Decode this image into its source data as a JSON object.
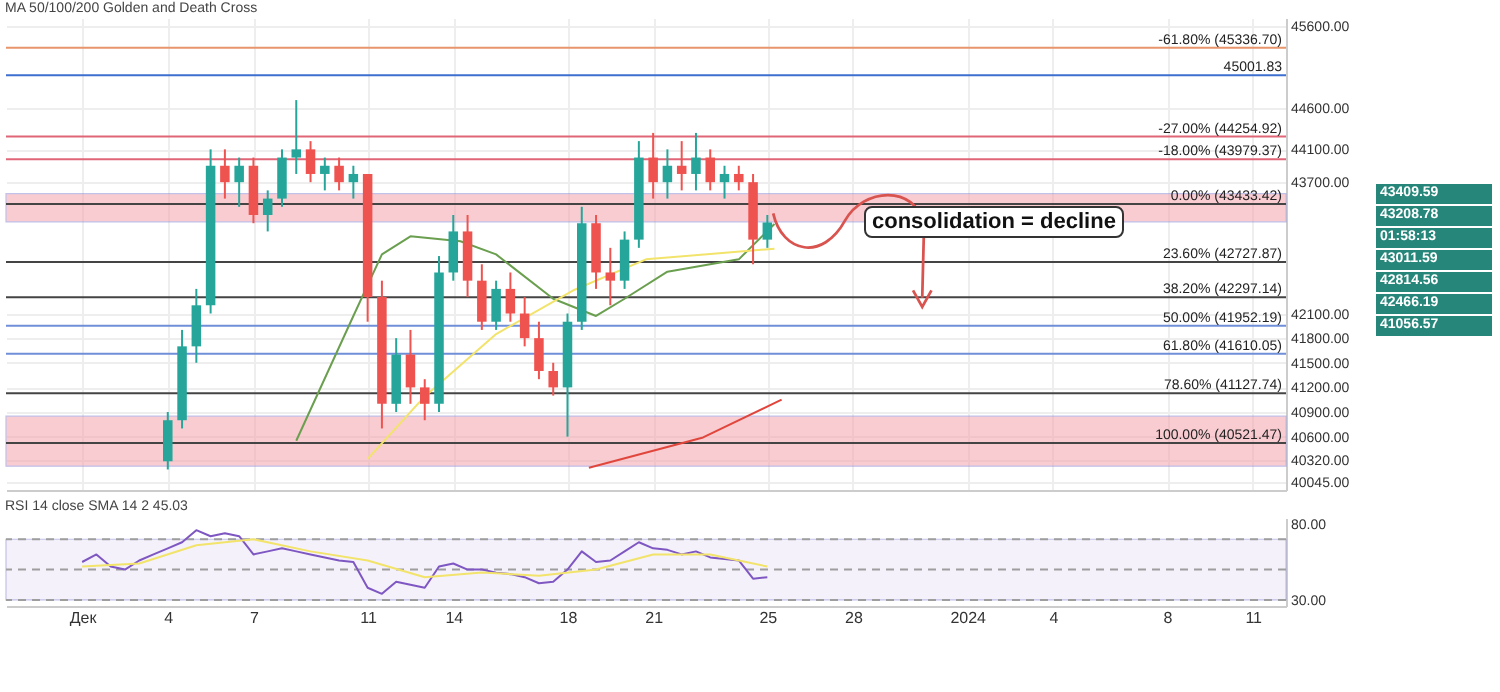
{
  "chart_data": [
    {
      "type": "candlestick",
      "title": "MA 50/100/200 Golden and Death Cross",
      "x": [
        "2023-12-04T00:00",
        "2023-12-04T12:00",
        "2023-12-05T00:00",
        "2023-12-05T12:00",
        "2023-12-06T00:00",
        "2023-12-06T12:00",
        "2023-12-07T00:00",
        "2023-12-07T12:00",
        "2023-12-08T00:00",
        "2023-12-08T12:00",
        "2023-12-09T00:00",
        "2023-12-09T12:00",
        "2023-12-10T00:00",
        "2023-12-10T12:00",
        "2023-12-11T00:00",
        "2023-12-11T12:00",
        "2023-12-12T00:00",
        "2023-12-12T12:00",
        "2023-12-13T00:00",
        "2023-12-13T12:00",
        "2023-12-14T00:00",
        "2023-12-14T12:00",
        "2023-12-15T00:00",
        "2023-12-15T12:00",
        "2023-12-16T00:00",
        "2023-12-16T12:00",
        "2023-12-17T00:00",
        "2023-12-17T12:00",
        "2023-12-18T00:00",
        "2023-12-18T12:00",
        "2023-12-19T00:00",
        "2023-12-19T12:00",
        "2023-12-20T00:00",
        "2023-12-20T12:00",
        "2023-12-21T00:00",
        "2023-12-21T12:00",
        "2023-12-22T00:00",
        "2023-12-22T12:00",
        "2023-12-23T00:00",
        "2023-12-23T12:00",
        "2023-12-24T00:00",
        "2023-12-24T12:00",
        "2023-12-25T00:00"
      ],
      "ohlc": [
        [
          40300,
          40900,
          40200,
          40800
        ],
        [
          40800,
          41900,
          40700,
          41700
        ],
        [
          41700,
          42400,
          41500,
          42200
        ],
        [
          42200,
          44100,
          42100,
          43900
        ],
        [
          43900,
          44100,
          43500,
          43700
        ],
        [
          43700,
          44000,
          43400,
          43900
        ],
        [
          43900,
          44000,
          43200,
          43300
        ],
        [
          43300,
          43600,
          43100,
          43500
        ],
        [
          43500,
          44100,
          43400,
          44000
        ],
        [
          44000,
          44700,
          43800,
          44100
        ],
        [
          44100,
          44200,
          43700,
          43800
        ],
        [
          43800,
          44000,
          43600,
          43900
        ],
        [
          43900,
          44000,
          43600,
          43700
        ],
        [
          43700,
          43900,
          43500,
          43800
        ],
        [
          43800,
          43800,
          42000,
          42300
        ],
        [
          42300,
          42500,
          40700,
          41000
        ],
        [
          41000,
          41800,
          40900,
          41600
        ],
        [
          41600,
          41900,
          41000,
          41200
        ],
        [
          41200,
          41300,
          40800,
          41000
        ],
        [
          41000,
          42800,
          40900,
          42600
        ],
        [
          42600,
          43300,
          42500,
          43100
        ],
        [
          43100,
          43300,
          42300,
          42500
        ],
        [
          42500,
          42700,
          41900,
          42000
        ],
        [
          42000,
          42500,
          41900,
          42400
        ],
        [
          42400,
          42600,
          42000,
          42100
        ],
        [
          42100,
          42300,
          41700,
          41800
        ],
        [
          41800,
          42000,
          41300,
          41400
        ],
        [
          41400,
          41500,
          41100,
          41200
        ],
        [
          41200,
          42100,
          40600,
          42000
        ],
        [
          42000,
          43400,
          41900,
          43200
        ],
        [
          43200,
          43300,
          42400,
          42600
        ],
        [
          42600,
          42900,
          42200,
          42500
        ],
        [
          42500,
          43100,
          42400,
          43000
        ],
        [
          43000,
          44200,
          42900,
          44000
        ],
        [
          44000,
          44300,
          43500,
          43700
        ],
        [
          43700,
          44100,
          43500,
          43900
        ],
        [
          43900,
          44200,
          43600,
          43800
        ],
        [
          43800,
          44300,
          43600,
          44000
        ],
        [
          44000,
          44100,
          43600,
          43700
        ],
        [
          43700,
          43900,
          43500,
          43800
        ],
        [
          43800,
          43900,
          43600,
          43700
        ],
        [
          43700,
          43800,
          42700,
          43000
        ],
        [
          43000,
          43300,
          42900,
          43209
        ]
      ],
      "colors": [
        "#26a69a",
        "#26a69a",
        "#26a69a",
        "#26a69a",
        "#ef5350",
        "#26a69a",
        "#ef5350",
        "#26a69a",
        "#26a69a",
        "#26a69a",
        "#ef5350",
        "#26a69a",
        "#ef5350",
        "#26a69a",
        "#ef5350",
        "#ef5350",
        "#26a69a",
        "#ef5350",
        "#ef5350",
        "#26a69a",
        "#26a69a",
        "#ef5350",
        "#ef5350",
        "#26a69a",
        "#ef5350",
        "#ef5350",
        "#ef5350",
        "#ef5350",
        "#26a69a",
        "#26a69a",
        "#ef5350",
        "#ef5350",
        "#26a69a",
        "#26a69a",
        "#ef5350",
        "#26a69a",
        "#ef5350",
        "#26a69a",
        "#ef5350",
        "#26a69a",
        "#ef5350",
        "#ef5350",
        "#26a69a"
      ],
      "series": [
        {
          "type": "line",
          "color": "#6a9f4f",
          "x": [
            "2023-12-08T12:00",
            "2023-12-10T12:00",
            "2023-12-11T12:00",
            "2023-12-12T12:00",
            "2023-12-14T06:00",
            "2023-12-15T12:00",
            "2023-12-17T12:00",
            "2023-12-19T00:00",
            "2023-12-20T00:00",
            "2023-12-21T12:00",
            "2023-12-24T00:00",
            "2023-12-25T06:00"
          ],
          "values": [
            40550,
            42070,
            42820,
            43040,
            42980,
            42820,
            42280,
            42070,
            42280,
            42610,
            42760,
            43190
          ]
        },
        {
          "type": "line",
          "color": "#f2e36b",
          "x": [
            "2023-12-11T00:00",
            "2023-12-13T00:00",
            "2023-12-15T12:00",
            "2023-12-18T06:00",
            "2023-12-20T18:00",
            "2023-12-25T06:00"
          ],
          "values": [
            40330,
            41090,
            41850,
            42390,
            42760,
            42890
          ]
        },
        {
          "type": "line",
          "color": "#e0463c",
          "x": [
            "2023-12-18T18:00",
            "2023-12-22T18:00",
            "2023-12-25T12:00"
          ],
          "values": [
            40220,
            40590,
            41050
          ]
        }
      ],
      "xlim": [
        "2023-11-28T08:00",
        "2024-01-12T04:00"
      ],
      "xticks": [
        {
          "value": "2023-12-01",
          "label": null
        },
        {
          "value": "2023-12-04",
          "label": null
        },
        {
          "value": "2023-12-07",
          "label": null
        },
        {
          "value": "2023-12-11",
          "label": null
        },
        {
          "value": "2023-12-14",
          "label": null
        },
        {
          "value": "2023-12-18",
          "label": null
        },
        {
          "value": "2023-12-21",
          "label": null
        },
        {
          "value": "2023-12-25",
          "label": null
        },
        {
          "value": "2023-12-28",
          "label": null
        },
        {
          "value": "2024-01-01",
          "label": null
        },
        {
          "value": "2024-01-04",
          "label": null
        },
        {
          "value": "2024-01-08",
          "label": null
        },
        {
          "value": "2024-01-11",
          "label": null
        }
      ],
      "ylim": [
        39950,
        45700
      ],
      "yticks": [
        {
          "value": 45600,
          "label": "45600.00"
        },
        {
          "value": 44600,
          "label": "44600.00"
        },
        {
          "value": 44100,
          "label": "44100.00"
        },
        {
          "value": 43700,
          "label": "43700.00"
        },
        {
          "value": 42100,
          "label": "42100.00"
        },
        {
          "value": 41800,
          "label": "41800.00"
        },
        {
          "value": 41500,
          "label": "41500.00"
        },
        {
          "value": 41200,
          "label": "41200.00"
        },
        {
          "value": 40900,
          "label": "40900.00"
        },
        {
          "value": 40600,
          "label": "40600.00"
        },
        {
          "value": 40320,
          "label": "40320.00"
        },
        {
          "value": 40045,
          "label": "40045.00"
        }
      ],
      "grid": true,
      "tick_labels": "y",
      "bands": [
        {
          "axis": "y",
          "from": 43216,
          "to": 43560,
          "color": "#f4a3ad"
        },
        {
          "axis": "y",
          "from": 40240,
          "to": 40850,
          "color": "#f4a3ad"
        }
      ],
      "ref_lines": [
        {
          "axis": "y",
          "value": 45336.7,
          "label": "-61.80% (45336.70)",
          "color": "#e8956b"
        },
        {
          "axis": "y",
          "value": 45001.83,
          "label": "45001.83",
          "color": "#3d6fd0"
        },
        {
          "axis": "y",
          "value": 44254.92,
          "label": "-27.00% (44254.92)",
          "color": "#e06677"
        },
        {
          "axis": "y",
          "value": 43979.37,
          "label": "-18.00% (43979.37)",
          "color": "#e06677"
        },
        {
          "axis": "y",
          "value": 43433.42,
          "label": "0.00% (43433.42)",
          "color": "#444444"
        },
        {
          "axis": "y",
          "value": 42727.87,
          "label": "23.60% (42727.87)",
          "color": "#444444"
        },
        {
          "axis": "y",
          "value": 42297.14,
          "label": "38.20% (42297.14)",
          "color": "#444444"
        },
        {
          "axis": "y",
          "value": 41952.19,
          "label": "50.00% (41952.19)",
          "color": "#6f8fd8"
        },
        {
          "axis": "y",
          "value": 41610.05,
          "label": "61.80% (41610.05)",
          "color": "#6f8fd8"
        },
        {
          "axis": "y",
          "value": 41127.74,
          "label": "78.60% (41127.74)",
          "color": "#444444"
        },
        {
          "axis": "y",
          "value": 40521.47,
          "label": "100.00% (40521.47)",
          "color": "#444444"
        }
      ],
      "annotations": [
        "consolidation = decline",
        "43409.59",
        "43208.78",
        "01:58:13",
        "43011.59",
        "42814.56",
        "42466.19",
        "41056.57"
      ]
    },
    {
      "type": "line",
      "title": "RSI 14 close SMA 14 2 45.03",
      "series": [
        {
          "color": "#7e57c2",
          "x": [
            "2023-12-01T00:00",
            "2023-12-01T12:00",
            "2023-12-02T00:00",
            "2023-12-02T12:00",
            "2023-12-03T00:00",
            "2023-12-03T12:00",
            "2023-12-04T00:00",
            "2023-12-04T12:00",
            "2023-12-05T00:00",
            "2023-12-05T12:00",
            "2023-12-06T00:00",
            "2023-12-06T12:00",
            "2023-12-07T00:00",
            "2023-12-07T12:00",
            "2023-12-08T00:00",
            "2023-12-08T12:00",
            "2023-12-09T00:00",
            "2023-12-09T12:00",
            "2023-12-10T00:00",
            "2023-12-10T12:00",
            "2023-12-11T00:00",
            "2023-12-11T12:00",
            "2023-12-12T00:00",
            "2023-12-12T12:00",
            "2023-12-13T00:00",
            "2023-12-13T12:00",
            "2023-12-14T00:00",
            "2023-12-14T12:00",
            "2023-12-15T00:00",
            "2023-12-15T12:00",
            "2023-12-16T00:00",
            "2023-12-16T12:00",
            "2023-12-17T00:00",
            "2023-12-17T12:00",
            "2023-12-18T00:00",
            "2023-12-18T12:00",
            "2023-12-19T00:00",
            "2023-12-19T12:00",
            "2023-12-20T00:00",
            "2023-12-20T12:00",
            "2023-12-21T00:00",
            "2023-12-21T12:00",
            "2023-12-22T00:00",
            "2023-12-22T12:00",
            "2023-12-23T00:00",
            "2023-12-23T12:00",
            "2023-12-24T00:00",
            "2023-12-24T12:00",
            "2023-12-25T00:00"
          ],
          "values": [
            55,
            60,
            52,
            50,
            56,
            60,
            64,
            68,
            76,
            72,
            74,
            72,
            60,
            62,
            64,
            62,
            60,
            58,
            56,
            55,
            38,
            34,
            42,
            40,
            38,
            52,
            54,
            50,
            50,
            48,
            47,
            45,
            41,
            42,
            50,
            62,
            55,
            56,
            62,
            68,
            64,
            63,
            60,
            62,
            58,
            57,
            56,
            44,
            45
          ]
        },
        {
          "color": "#f2e36b",
          "x": [
            "2023-12-01T00:00",
            "2023-12-03T00:00",
            "2023-12-05T00:00",
            "2023-12-07T00:00",
            "2023-12-09T00:00",
            "2023-12-11T00:00",
            "2023-12-13T00:00",
            "2023-12-15T00:00",
            "2023-12-17T00:00",
            "2023-12-19T00:00",
            "2023-12-21T00:00",
            "2023-12-23T00:00",
            "2023-12-25T00:00"
          ],
          "values": [
            52,
            54,
            66,
            70,
            62,
            56,
            45,
            48,
            46,
            50,
            60,
            60,
            52
          ]
        }
      ],
      "xlim": [
        "2023-11-28T08:00",
        "2024-01-12T04:00"
      ],
      "xticks": [
        {
          "value": "2023-12-01",
          "label": "Дек"
        },
        {
          "value": "2023-12-04",
          "label": "4"
        },
        {
          "value": "2023-12-07",
          "label": "7"
        },
        {
          "value": "2023-12-11",
          "label": "11"
        },
        {
          "value": "2023-12-14",
          "label": "14"
        },
        {
          "value": "2023-12-18",
          "label": "18"
        },
        {
          "value": "2023-12-21",
          "label": "21"
        },
        {
          "value": "2023-12-25",
          "label": "25"
        },
        {
          "value": "2023-12-28",
          "label": "28"
        },
        {
          "value": "2024-01-01",
          "label": "2024"
        },
        {
          "value": "2024-01-04",
          "label": "4"
        },
        {
          "value": "2024-01-08",
          "label": "8"
        },
        {
          "value": "2024-01-11",
          "label": "11"
        }
      ],
      "ylim": [
        26,
        84
      ],
      "yticks": [
        {
          "value": 80,
          "label": "80.00"
        },
        {
          "value": 30,
          "label": "30.00"
        }
      ],
      "bands": [
        {
          "axis": "y",
          "from": 30,
          "to": 70,
          "color": "#ede7f6"
        }
      ],
      "ref_lines": [
        {
          "axis": "y",
          "value": 70,
          "color": "#9e9e9e",
          "line_style": "dashed"
        },
        {
          "axis": "y",
          "value": 50,
          "color": "#9e9e9e",
          "line_style": "dashed"
        },
        {
          "axis": "y",
          "value": 30,
          "color": "#9e9e9e",
          "line_style": "dashed"
        }
      ],
      "grid": false
    }
  ]
}
